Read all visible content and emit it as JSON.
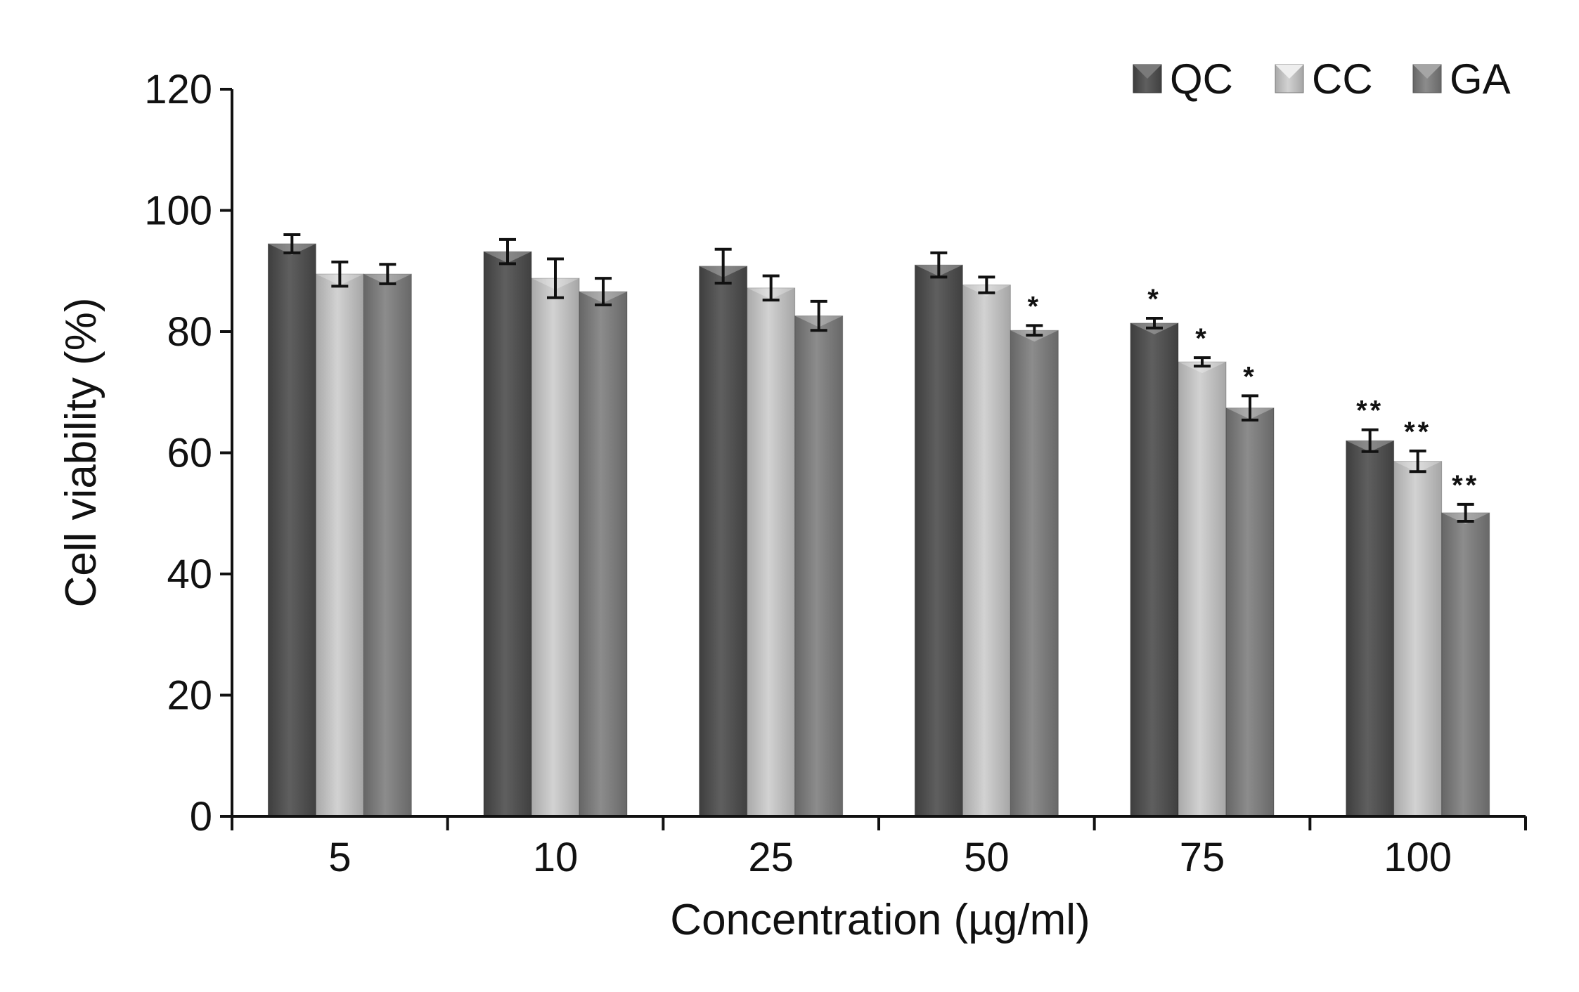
{
  "chart_data": {
    "type": "bar",
    "title": "",
    "xlabel": "Concentration (µg/ml)",
    "ylabel": "Cell viability (%)",
    "ylim": [
      0,
      120
    ],
    "yticks": [
      "0",
      "20",
      "40",
      "60",
      "80",
      "100",
      "120"
    ],
    "categories": [
      "5",
      "10",
      "25",
      "50",
      "75",
      "100"
    ],
    "legend_position": "top-right",
    "series": [
      {
        "name": "QC",
        "color": "#555555",
        "values": [
          94.5,
          93.2,
          90.8,
          91.0,
          81.4,
          62.0
        ],
        "errors": [
          1.5,
          2.0,
          2.8,
          2.0,
          0.8,
          1.8
        ],
        "significance": [
          "",
          "",
          "",
          "",
          "*",
          "**"
        ]
      },
      {
        "name": "CC",
        "color": "#c4c4c4",
        "values": [
          89.5,
          88.8,
          87.2,
          87.7,
          75.0,
          58.6
        ],
        "errors": [
          2.0,
          3.2,
          2.0,
          1.3,
          0.7,
          1.7
        ],
        "significance": [
          "",
          "",
          "",
          "",
          "*",
          "**"
        ]
      },
      {
        "name": "GA",
        "color": "#818181",
        "values": [
          89.5,
          86.6,
          82.6,
          80.2,
          67.4,
          50.1
        ],
        "errors": [
          1.6,
          2.2,
          2.4,
          0.8,
          2.0,
          1.4
        ],
        "significance": [
          "",
          "",
          "",
          "*",
          "*",
          "**"
        ]
      }
    ]
  }
}
